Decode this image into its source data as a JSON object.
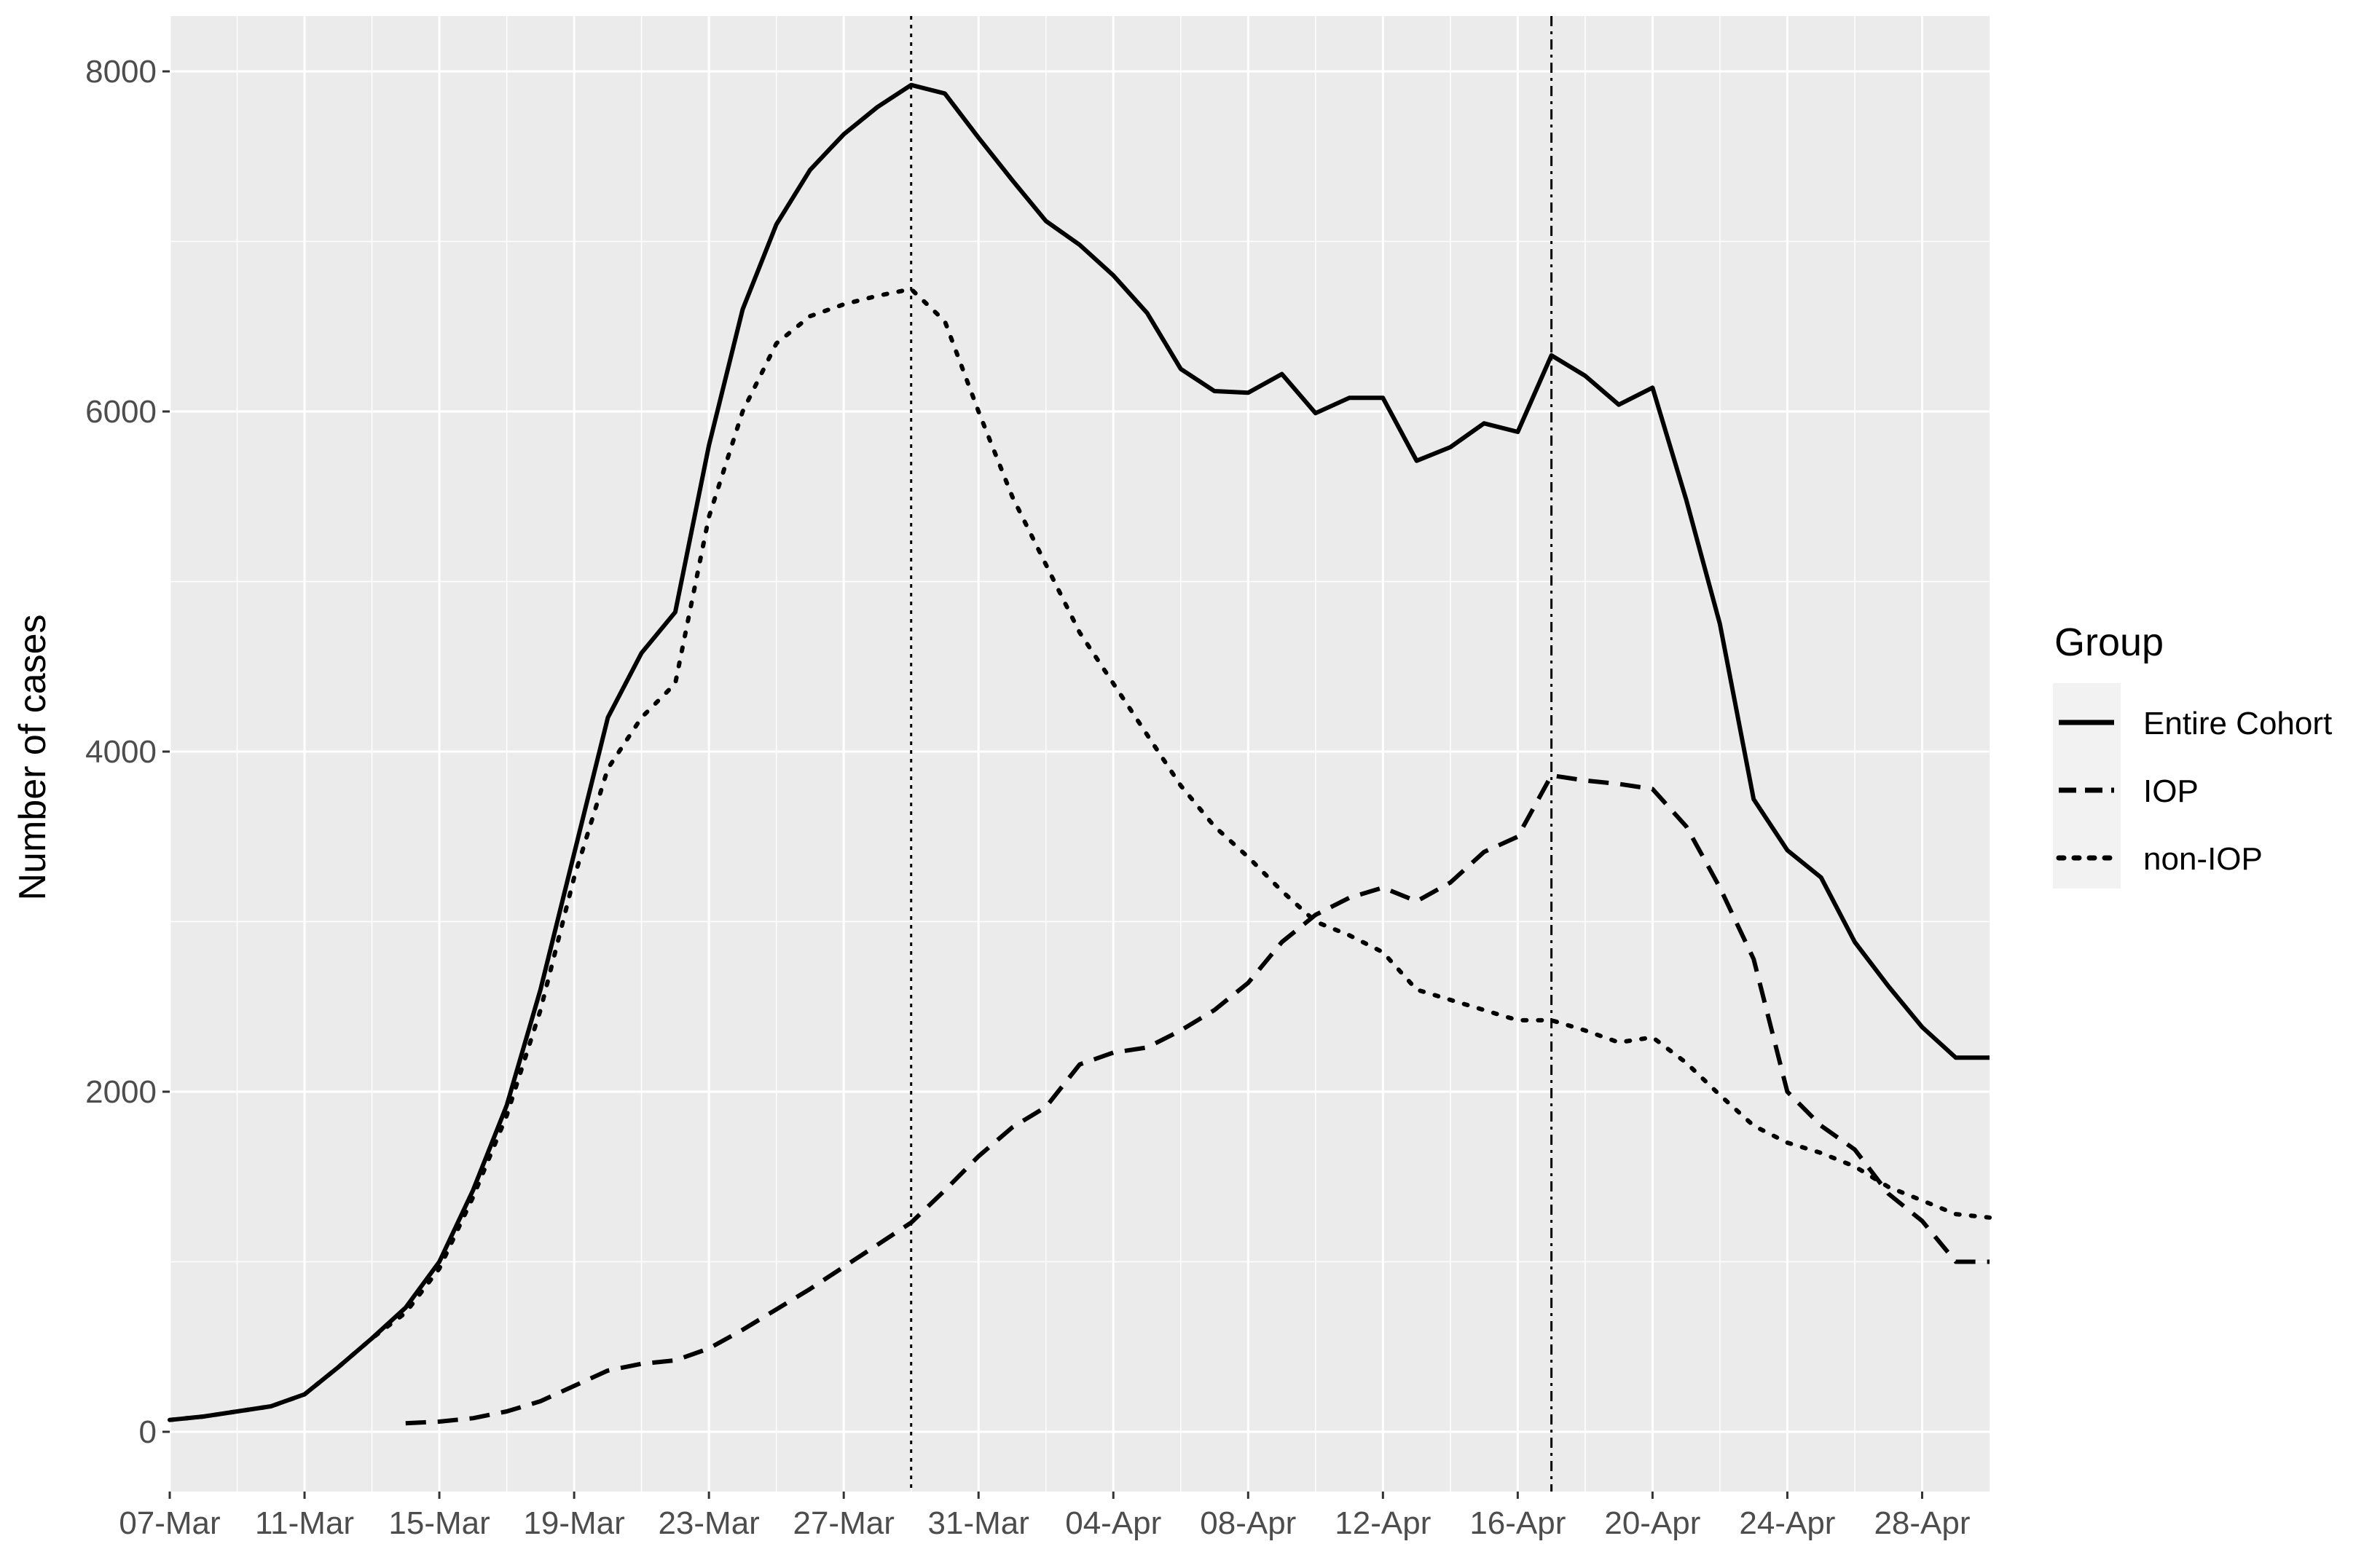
{
  "chart_data": {
    "type": "line",
    "title": "",
    "xlabel": "",
    "ylabel": "Number of cases",
    "x_type": "date",
    "x_tick_labels": [
      "07-Mar",
      "11-Mar",
      "15-Mar",
      "19-Mar",
      "23-Mar",
      "27-Mar",
      "31-Mar",
      "04-Apr",
      "08-Apr",
      "12-Apr",
      "16-Apr",
      "20-Apr",
      "24-Apr",
      "28-Apr"
    ],
    "x_ticks": [
      "2020-03-07",
      "2020-03-11",
      "2020-03-15",
      "2020-03-19",
      "2020-03-23",
      "2020-03-27",
      "2020-03-31",
      "2020-04-04",
      "2020-04-08",
      "2020-04-12",
      "2020-04-16",
      "2020-04-20",
      "2020-04-24",
      "2020-04-28"
    ],
    "xlim": [
      "2020-03-07",
      "2020-04-30"
    ],
    "ylim": [
      0,
      8000
    ],
    "y_ticks": [
      0,
      2000,
      4000,
      6000,
      8000
    ],
    "y_tick_labels": [
      "0",
      "2000",
      "4000",
      "6000",
      "8000"
    ],
    "grid": true,
    "legend": {
      "title": "Group",
      "position": "right",
      "entries": [
        "Entire Cohort",
        "IOP",
        "non-IOP"
      ]
    },
    "vlines": [
      "2020-03-29",
      "2020-04-17"
    ],
    "series": [
      {
        "name": "Entire Cohort",
        "line_style": "solid",
        "x": [
          "2020-03-07",
          "2020-03-08",
          "2020-03-09",
          "2020-03-10",
          "2020-03-11",
          "2020-03-12",
          "2020-03-13",
          "2020-03-14",
          "2020-03-15",
          "2020-03-16",
          "2020-03-17",
          "2020-03-18",
          "2020-03-19",
          "2020-03-20",
          "2020-03-21",
          "2020-03-22",
          "2020-03-23",
          "2020-03-24",
          "2020-03-25",
          "2020-03-26",
          "2020-03-27",
          "2020-03-28",
          "2020-03-29",
          "2020-03-30",
          "2020-03-31",
          "2020-04-01",
          "2020-04-02",
          "2020-04-03",
          "2020-04-04",
          "2020-04-05",
          "2020-04-06",
          "2020-04-07",
          "2020-04-08",
          "2020-04-09",
          "2020-04-10",
          "2020-04-11",
          "2020-04-12",
          "2020-04-13",
          "2020-04-14",
          "2020-04-15",
          "2020-04-16",
          "2020-04-17",
          "2020-04-18",
          "2020-04-19",
          "2020-04-20",
          "2020-04-21",
          "2020-04-22",
          "2020-04-23",
          "2020-04-24",
          "2020-04-25",
          "2020-04-26",
          "2020-04-27",
          "2020-04-28",
          "2020-04-29",
          "2020-04-30"
        ],
        "values": [
          70,
          90,
          120,
          150,
          220,
          380,
          550,
          730,
          1000,
          1420,
          1920,
          2600,
          3400,
          4200,
          4580,
          4820,
          5800,
          6600,
          7100,
          7420,
          7630,
          7790,
          7920,
          7870,
          7610,
          7360,
          7120,
          6980,
          6800,
          6580,
          6250,
          6120,
          6110,
          6220,
          5990,
          6080,
          6080,
          5710,
          5790,
          5930,
          5880,
          6330,
          6210,
          6040,
          6140,
          5480,
          4750,
          3720,
          3420,
          3260,
          2880,
          2620,
          2380,
          2200,
          2200
        ]
      },
      {
        "name": "IOP",
        "line_style": "dashed",
        "x": [
          "2020-03-14",
          "2020-03-15",
          "2020-03-16",
          "2020-03-17",
          "2020-03-18",
          "2020-03-19",
          "2020-03-20",
          "2020-03-21",
          "2020-03-22",
          "2020-03-23",
          "2020-03-24",
          "2020-03-25",
          "2020-03-26",
          "2020-03-27",
          "2020-03-28",
          "2020-03-29",
          "2020-03-30",
          "2020-03-31",
          "2020-04-01",
          "2020-04-02",
          "2020-04-03",
          "2020-04-04",
          "2020-04-05",
          "2020-04-06",
          "2020-04-07",
          "2020-04-08",
          "2020-04-09",
          "2020-04-10",
          "2020-04-11",
          "2020-04-12",
          "2020-04-13",
          "2020-04-14",
          "2020-04-15",
          "2020-04-16",
          "2020-04-17",
          "2020-04-18",
          "2020-04-19",
          "2020-04-20",
          "2020-04-21",
          "2020-04-22",
          "2020-04-23",
          "2020-04-24",
          "2020-04-25",
          "2020-04-26",
          "2020-04-27",
          "2020-04-28",
          "2020-04-29",
          "2020-04-30"
        ],
        "values": [
          50,
          60,
          80,
          120,
          180,
          270,
          360,
          400,
          420,
          490,
          600,
          720,
          840,
          970,
          1100,
          1230,
          1420,
          1620,
          1790,
          1910,
          2160,
          2230,
          2260,
          2360,
          2480,
          2640,
          2880,
          3040,
          3140,
          3200,
          3120,
          3230,
          3410,
          3500,
          3860,
          3830,
          3810,
          3780,
          3560,
          3200,
          2780,
          2000,
          1800,
          1660,
          1400,
          1240,
          1000,
          1000
        ]
      },
      {
        "name": "non-IOP",
        "line_style": "dotted",
        "x": [
          "2020-03-07",
          "2020-03-08",
          "2020-03-09",
          "2020-03-10",
          "2020-03-11",
          "2020-03-12",
          "2020-03-13",
          "2020-03-14",
          "2020-03-15",
          "2020-03-16",
          "2020-03-17",
          "2020-03-18",
          "2020-03-19",
          "2020-03-20",
          "2020-03-21",
          "2020-03-22",
          "2020-03-23",
          "2020-03-24",
          "2020-03-25",
          "2020-03-26",
          "2020-03-27",
          "2020-03-28",
          "2020-03-29",
          "2020-03-30",
          "2020-03-31",
          "2020-04-01",
          "2020-04-02",
          "2020-04-03",
          "2020-04-04",
          "2020-04-05",
          "2020-04-06",
          "2020-04-07",
          "2020-04-08",
          "2020-04-09",
          "2020-04-10",
          "2020-04-11",
          "2020-04-12",
          "2020-04-13",
          "2020-04-14",
          "2020-04-15",
          "2020-04-16",
          "2020-04-17",
          "2020-04-18",
          "2020-04-19",
          "2020-04-20",
          "2020-04-21",
          "2020-04-22",
          "2020-04-23",
          "2020-04-24",
          "2020-04-25",
          "2020-04-26",
          "2020-04-27",
          "2020-04-28",
          "2020-04-29",
          "2020-04-30"
        ],
        "values": [
          70,
          90,
          120,
          150,
          220,
          380,
          550,
          700,
          960,
          1380,
          1860,
          2480,
          3260,
          3900,
          4200,
          4400,
          5380,
          6000,
          6400,
          6560,
          6630,
          6680,
          6720,
          6530,
          6000,
          5500,
          5100,
          4700,
          4400,
          4100,
          3800,
          3560,
          3380,
          3180,
          3000,
          2920,
          2820,
          2600,
          2540,
          2480,
          2420,
          2420,
          2360,
          2290,
          2320,
          2170,
          1980,
          1800,
          1700,
          1640,
          1560,
          1440,
          1360,
          1280,
          1260
        ]
      }
    ]
  }
}
